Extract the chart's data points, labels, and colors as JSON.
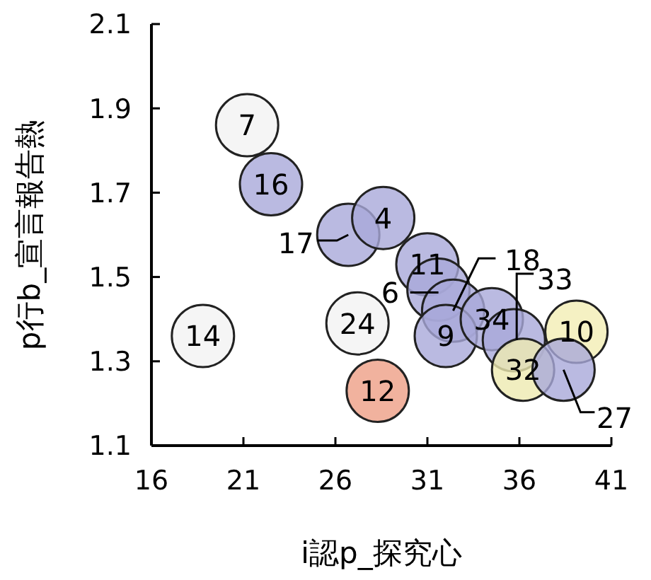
{
  "chart_data": {
    "type": "scatter",
    "xlabel": "i認p_探究心",
    "ylabel": "p行b_宣言報告熱",
    "x": [
      21.2,
      22.5,
      26.7,
      28.6,
      31.0,
      31.6,
      32.4,
      32.0,
      34.5,
      35.7,
      36.2,
      39.1,
      38.4,
      27.2,
      28.3,
      18.8
    ],
    "values": [
      1.86,
      1.72,
      1.6,
      1.64,
      1.53,
      1.47,
      1.42,
      1.36,
      1.4,
      1.35,
      1.28,
      1.37,
      1.28,
      1.39,
      1.23,
      1.36
    ],
    "colors": [
      "#f2f2f2",
      "#a9a9d9",
      "#a9a9d9",
      "#a9a9d9",
      "#a9a9d9",
      "#a9a9d9",
      "#a9a9d9",
      "#a9a9d9",
      "#a9a9d9",
      "#a9a9d9",
      "#eeeab0",
      "#f3eeb4",
      "#a9a9d9",
      "#f2f2f2",
      "#ee9f86",
      "#f2f2f2"
    ],
    "annotations": [
      {
        "text": "7",
        "x": 21.2,
        "y": 1.86
      },
      {
        "text": "16",
        "x": 22.5,
        "y": 1.72
      },
      {
        "text": "17",
        "x": 26.7,
        "y": 1.6
      },
      {
        "text": "4",
        "x": 28.6,
        "y": 1.64
      },
      {
        "text": "11",
        "x": 31.0,
        "y": 1.53
      },
      {
        "text": "6",
        "x": 31.6,
        "y": 1.47
      },
      {
        "text": "18",
        "x": 32.4,
        "y": 1.42
      },
      {
        "text": "9",
        "x": 32.0,
        "y": 1.36
      },
      {
        "text": "34",
        "x": 34.5,
        "y": 1.4
      },
      {
        "text": "33",
        "x": 35.7,
        "y": 1.35
      },
      {
        "text": "32",
        "x": 36.2,
        "y": 1.28
      },
      {
        "text": "10",
        "x": 39.1,
        "y": 1.37
      },
      {
        "text": "27",
        "x": 38.4,
        "y": 1.28
      },
      {
        "text": "24",
        "x": 27.2,
        "y": 1.39
      },
      {
        "text": "12",
        "x": 28.3,
        "y": 1.23
      },
      {
        "text": "14",
        "x": 18.8,
        "y": 1.36
      }
    ],
    "marker": "circle",
    "xlim": [
      16,
      41
    ],
    "xticks": [
      16,
      21,
      26,
      31,
      36,
      41
    ],
    "ylim": [
      1.1,
      2.1
    ],
    "yticks": [
      1.1,
      1.3,
      1.5,
      1.7,
      1.9,
      2.1
    ]
  }
}
